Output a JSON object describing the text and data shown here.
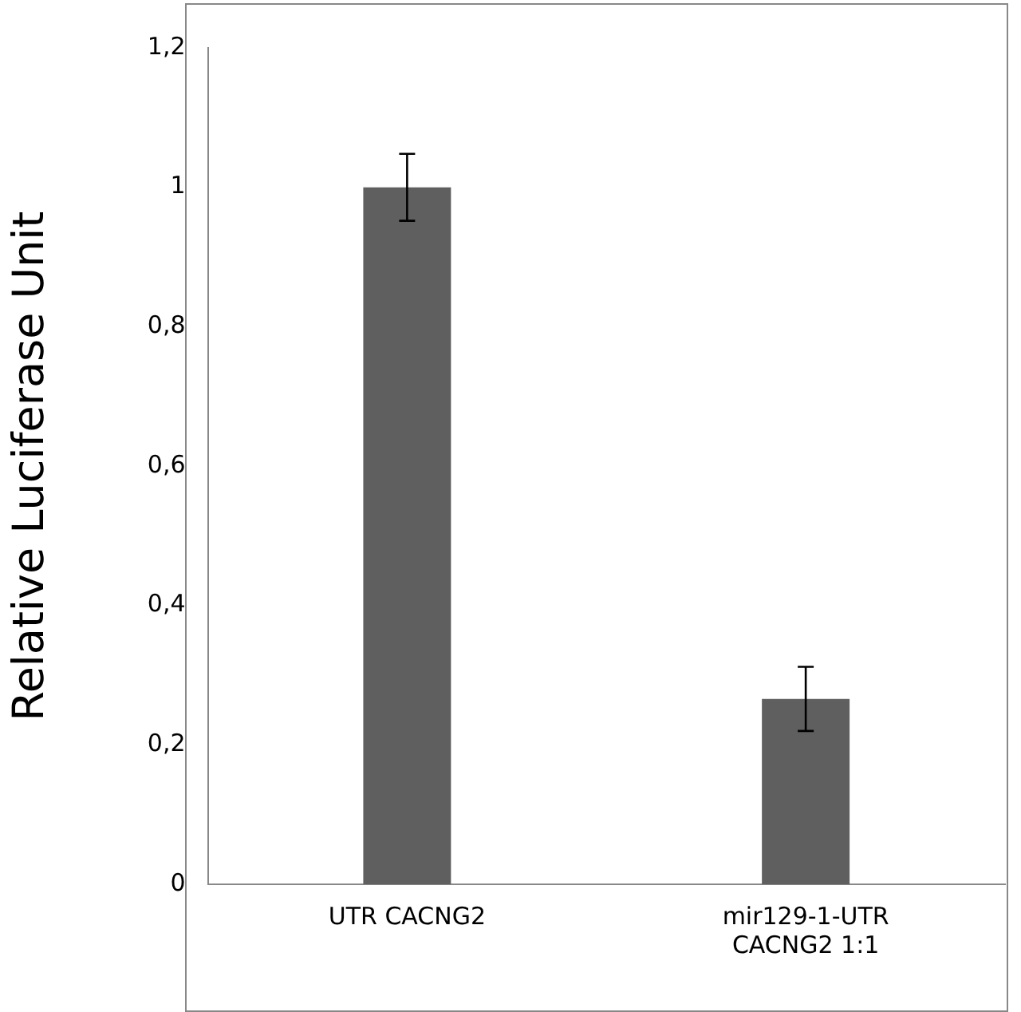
{
  "chart_data": {
    "type": "bar",
    "ylabel": "Relative Luciferase Unit",
    "categories": [
      "UTR CACNG2",
      "mir129-1-UTR CACNG2 1:1"
    ],
    "values": [
      1.0,
      0.266
    ],
    "errors": [
      0.048,
      0.046
    ],
    "color": "#5f5f5f",
    "ylim": [
      0,
      1.2
    ],
    "yticks": [
      0,
      {
        "value": 0.2,
        "label": "0,2"
      },
      {
        "value": 0.4,
        "label": "0,4"
      },
      {
        "value": 0.6,
        "label": "0,6"
      },
      {
        "value": 0.8,
        "label": "0,8"
      },
      1,
      {
        "value": 1.2,
        "label": "1,2"
      }
    ],
    "grid": false,
    "legend": false
  }
}
